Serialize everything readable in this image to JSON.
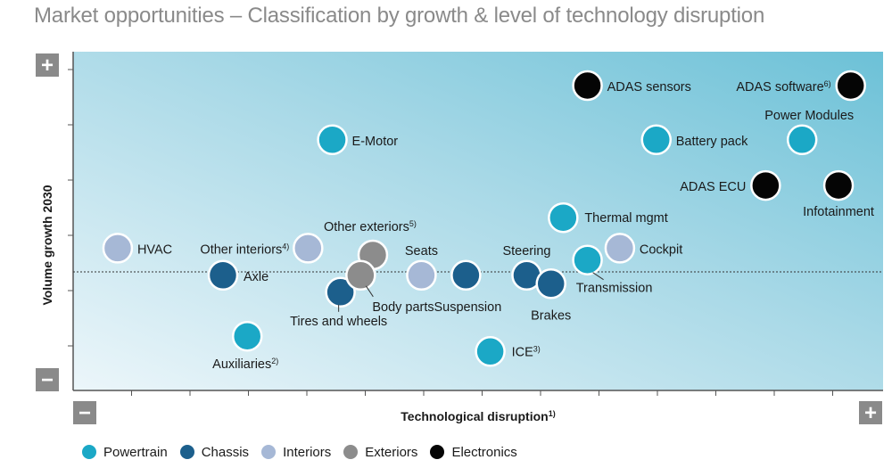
{
  "title": "Market opportunities – Classification by growth & level of technology disruption",
  "categories": [
    {
      "name": "Powertrain",
      "color": "#1ba8c6"
    },
    {
      "name": "Chassis",
      "color": "#1c5f8c"
    },
    {
      "name": "Interiors",
      "color": "#a6b8d6"
    },
    {
      "name": "Exteriors",
      "color": "#8c8c8c"
    },
    {
      "name": "Electronics",
      "color": "#050505"
    }
  ],
  "chart_data": {
    "type": "scatter",
    "xlabel": "Technological disruption",
    "xlabel_sup": "1)",
    "ylabel": "Volume growth 2030",
    "x_min_label": "−",
    "x_max_label": "+",
    "y_min_label": "−",
    "y_max_label": "+",
    "xlim": [
      0,
      100
    ],
    "ylim": [
      0,
      100
    ],
    "reference_line_y": 35,
    "grid": false,
    "legend_position": "bottom",
    "points": [
      {
        "label": "E-Motor",
        "sup": "",
        "category": "Powertrain",
        "x": 32,
        "y": 74
      },
      {
        "label": "Battery pack",
        "sup": "",
        "category": "Powertrain",
        "x": 72,
        "y": 74
      },
      {
        "label": "Power Modules",
        "sup": "",
        "category": "Powertrain",
        "x": 90,
        "y": 74
      },
      {
        "label": "Thermal mgmt",
        "sup": "",
        "category": "Powertrain",
        "x": 60.5,
        "y": 51
      },
      {
        "label": "Transmission",
        "sup": "",
        "category": "Powertrain",
        "x": 63.5,
        "y": 38.5
      },
      {
        "label": "Auxiliaries",
        "sup": "2)",
        "category": "Powertrain",
        "x": 21.5,
        "y": 16
      },
      {
        "label": "ICE",
        "sup": "3)",
        "category": "Powertrain",
        "x": 51.5,
        "y": 11.5
      },
      {
        "label": "Axle",
        "sup": "",
        "category": "Chassis",
        "x": 18.5,
        "y": 34
      },
      {
        "label": "Tires and wheels",
        "sup": "",
        "category": "Chassis",
        "x": 33,
        "y": 29
      },
      {
        "label": "Suspension",
        "sup": "",
        "category": "Chassis",
        "x": 48.5,
        "y": 34
      },
      {
        "label": "Steering",
        "sup": "",
        "category": "Chassis",
        "x": 56,
        "y": 34
      },
      {
        "label": "Brakes",
        "sup": "",
        "category": "Chassis",
        "x": 59,
        "y": 31.5
      },
      {
        "label": "HVAC",
        "sup": "",
        "category": "Interiors",
        "x": 5.5,
        "y": 42
      },
      {
        "label": "Other interiors",
        "sup": "4)",
        "category": "Interiors",
        "x": 29,
        "y": 42
      },
      {
        "label": "Seats",
        "sup": "",
        "category": "Interiors",
        "x": 43,
        "y": 34
      },
      {
        "label": "Cockpit",
        "sup": "",
        "category": "Interiors",
        "x": 67.5,
        "y": 42
      },
      {
        "label": "Other exteriors",
        "sup": "5)",
        "category": "Exteriors",
        "x": 37,
        "y": 40
      },
      {
        "label": "Body parts",
        "sup": "",
        "category": "Exteriors",
        "x": 35.5,
        "y": 34
      },
      {
        "label": "ADAS sensors",
        "sup": "",
        "category": "Electronics",
        "x": 63.5,
        "y": 90
      },
      {
        "label": "ADAS software",
        "sup": "6)",
        "category": "Electronics",
        "x": 96,
        "y": 90
      },
      {
        "label": "ADAS ECU",
        "sup": "",
        "category": "Electronics",
        "x": 85.5,
        "y": 60.5
      },
      {
        "label": "Infotainment",
        "sup": "",
        "category": "Electronics",
        "x": 94.5,
        "y": 60.5
      }
    ]
  }
}
